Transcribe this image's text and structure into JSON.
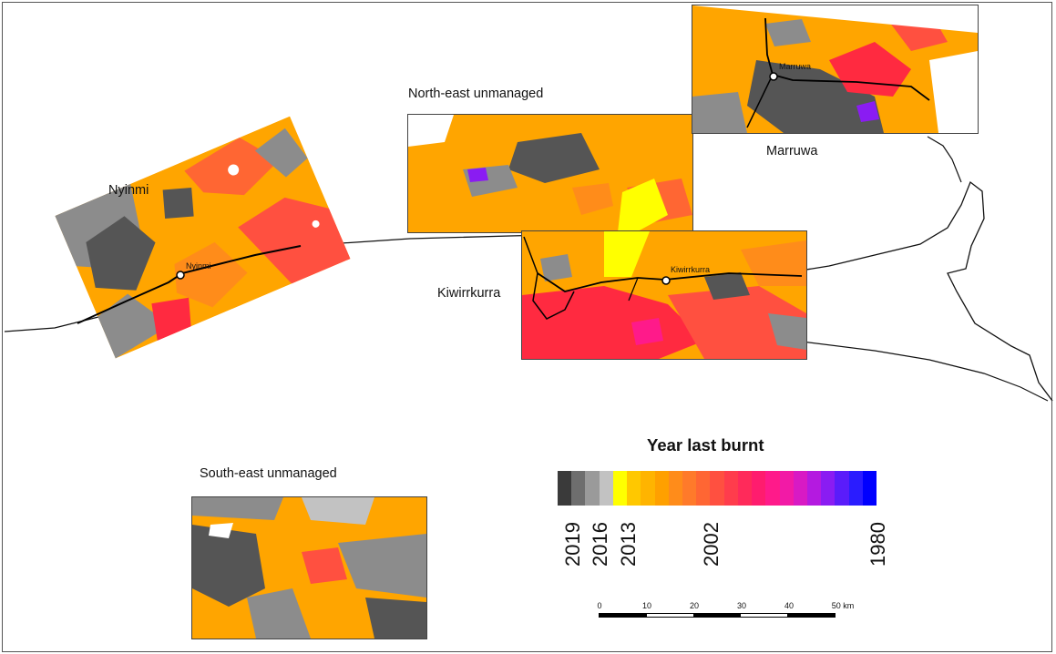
{
  "map": {
    "regions": {
      "nyinmi": "Nyinmi",
      "north_east": "North-east unmanaged",
      "marruwa": "Marruwa",
      "kiwirrkurra": "Kiwirrkurra",
      "south_east": "South-east unmanaged"
    },
    "towns": {
      "nyinmi": "Nyinmi",
      "marruwa": "Marruwa",
      "kiwirrkurra": "Kiwirrkurra"
    }
  },
  "legend": {
    "title": "Year last burnt",
    "ticks": [
      "2019",
      "2016",
      "2013",
      "2002",
      "1980"
    ],
    "colors": [
      "#3a3a3a",
      "#6e6e6e",
      "#9a9a9a",
      "#c2c2c2",
      "#ffff00",
      "#ffc800",
      "#ffb400",
      "#ffa000",
      "#ff8c1a",
      "#ff7a2a",
      "#ff6633",
      "#ff5040",
      "#ff3c4c",
      "#ff2a5a",
      "#ff1c6e",
      "#ff1a8a",
      "#f21aa6",
      "#d81ac4",
      "#b41ae0",
      "#8a1cf2",
      "#5a1cfa",
      "#2a1cff",
      "#0000ff"
    ]
  },
  "scalebar": {
    "labels": [
      "0",
      "10",
      "20",
      "30",
      "40",
      "50 km"
    ]
  },
  "colors": {
    "orange": "#ffa500",
    "dark_grey": "#555555",
    "grey": "#8c8c8c",
    "red": "#ff2a40",
    "magenta": "#ff1a8a",
    "purple": "#8a1cf2",
    "yellow": "#ffff00"
  }
}
